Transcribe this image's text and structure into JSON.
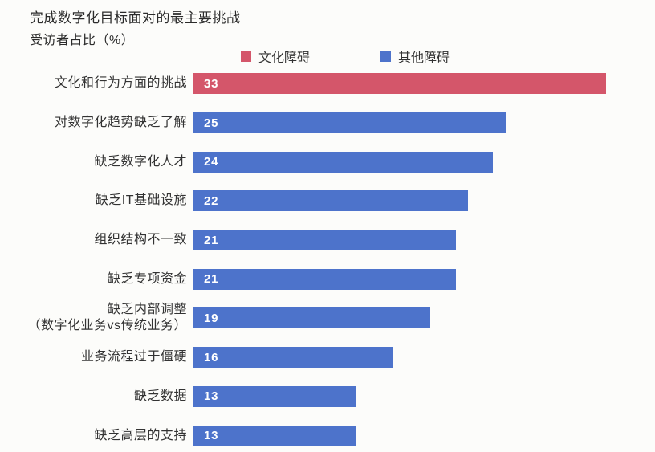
{
  "chart": {
    "title": "完成数字化目标面对的最主要挑战",
    "subtitle": "受访者占比（%）",
    "legend": [
      {
        "label": "文化障碍",
        "color": "#d4566a"
      },
      {
        "label": "其他障碍",
        "color": "#4d73cb"
      }
    ]
  },
  "chart_data": {
    "type": "bar",
    "orientation": "horizontal",
    "title": "完成数字化目标面对的最主要挑战",
    "value_unit": "受访者占比（%）",
    "xlim": [
      0,
      33
    ],
    "grid": false,
    "legend_position": "top",
    "value_labels": "inside-left",
    "categories": [
      "文化和行为方面的挑战",
      "对数字化趋势缺乏了解",
      "缺乏数字化人才",
      "缺乏IT基础设施",
      "组织结构不一致",
      "缺乏专项资金",
      "缺乏内部调整（数字化业务vs传统业务）",
      "业务流程过于僵硬",
      "缺乏数据",
      "缺乏高层的支持"
    ],
    "values": [
      33,
      25,
      24,
      22,
      21,
      21,
      19,
      16,
      13,
      13
    ],
    "series": [
      {
        "name": "文化障碍",
        "color": "#d4566a",
        "indices": [
          0
        ]
      },
      {
        "name": "其他障碍",
        "color": "#4d73cb",
        "indices": [
          1,
          2,
          3,
          4,
          5,
          6,
          7,
          8,
          9
        ]
      }
    ]
  }
}
